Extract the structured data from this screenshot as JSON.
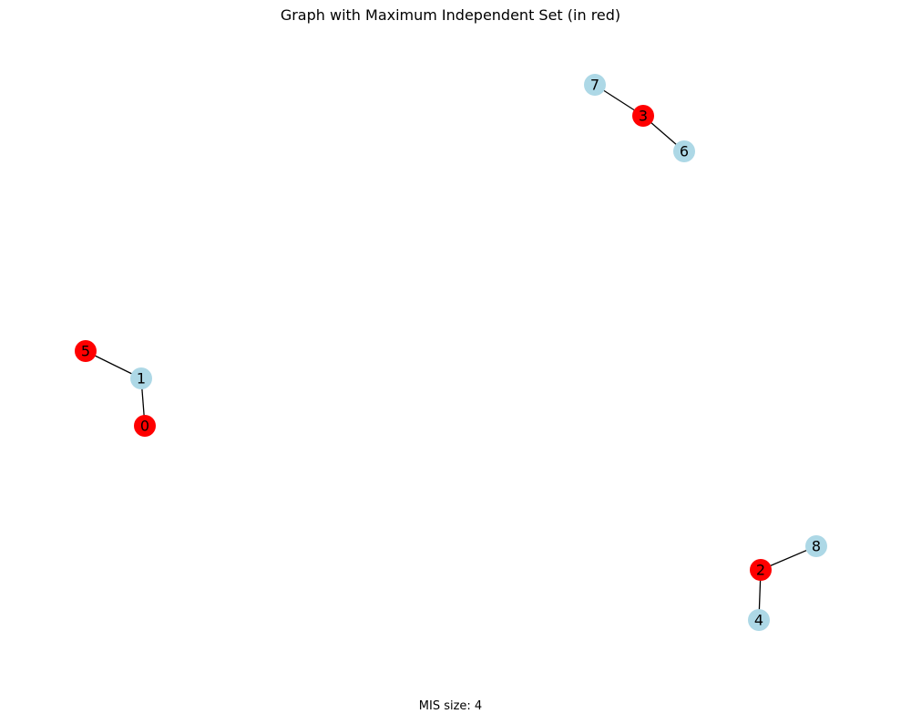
{
  "title": "Graph with Maximum Independent Set (in red)",
  "caption": "MIS size: 4",
  "colors": {
    "selected": "#ff0000",
    "unselected": "#add8e6",
    "edge": "#000000"
  },
  "nodes": [
    {
      "id": "0",
      "selected": true
    },
    {
      "id": "1",
      "selected": false
    },
    {
      "id": "2",
      "selected": true
    },
    {
      "id": "3",
      "selected": true
    },
    {
      "id": "4",
      "selected": false
    },
    {
      "id": "5",
      "selected": true
    },
    {
      "id": "6",
      "selected": false
    },
    {
      "id": "7",
      "selected": false
    },
    {
      "id": "8",
      "selected": false
    }
  ],
  "edges": [
    [
      "5",
      "1"
    ],
    [
      "1",
      "0"
    ],
    [
      "7",
      "3"
    ],
    [
      "3",
      "6"
    ],
    [
      "2",
      "8"
    ],
    [
      "2",
      "4"
    ]
  ]
}
